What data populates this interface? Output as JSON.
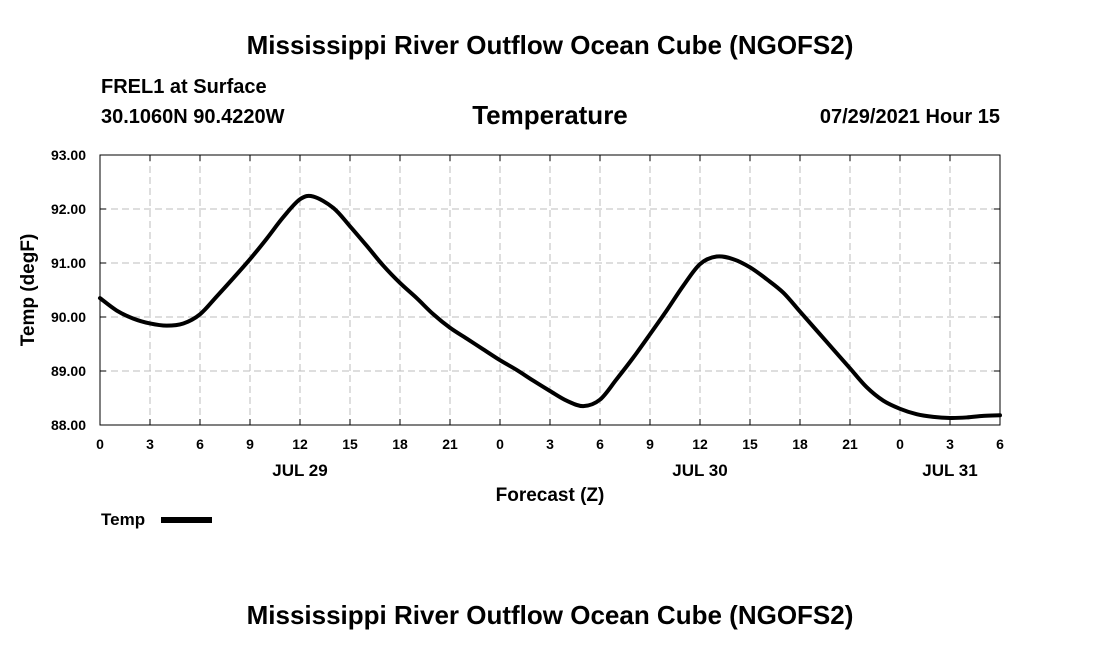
{
  "header": {
    "title": "Mississippi River Outflow Ocean Cube (NGOFS2)",
    "station": "FREL1 at Surface",
    "coordinates": "30.1060N  90.4220W",
    "parameter": "Temperature",
    "datetime": "07/29/2021 Hour 15"
  },
  "footer": {
    "title": "Mississippi River Outflow Ocean Cube (NGOFS2)"
  },
  "legend": {
    "label": "Temp"
  },
  "chart_data": {
    "type": "line",
    "title": "Temperature",
    "xlabel": "Forecast (Z)",
    "ylabel": "Temp (degF)",
    "xlim": [
      0,
      54
    ],
    "ylim": [
      88.0,
      93.0
    ],
    "grid": true,
    "x_ticks": [
      0,
      3,
      6,
      9,
      12,
      15,
      18,
      21,
      24,
      27,
      30,
      33,
      36,
      39,
      42,
      45,
      48,
      51,
      54
    ],
    "x_tick_labels": [
      "0",
      "3",
      "6",
      "9",
      "12",
      "15",
      "18",
      "21",
      "0",
      "3",
      "6",
      "9",
      "12",
      "15",
      "18",
      "21",
      "0",
      "3",
      "6"
    ],
    "y_ticks": [
      88.0,
      89.0,
      90.0,
      91.0,
      92.0,
      93.0
    ],
    "y_tick_labels": [
      "88.00",
      "89.00",
      "90.00",
      "91.00",
      "92.00",
      "93.00"
    ],
    "date_labels": [
      {
        "x": 12,
        "label": "JUL 29"
      },
      {
        "x": 36,
        "label": "JUL 30"
      },
      {
        "x": 51,
        "label": "JUL 31"
      }
    ],
    "series": [
      {
        "name": "Temp",
        "color": "#000000",
        "x": [
          0,
          1,
          2,
          3,
          4,
          5,
          6,
          7,
          8,
          9,
          10,
          11,
          12,
          12.8,
          14,
          15,
          16,
          17,
          18,
          19,
          20,
          21,
          22,
          23,
          24,
          25,
          26,
          27,
          28,
          29,
          30,
          31,
          32,
          33,
          34,
          35,
          36,
          37,
          38,
          39,
          40,
          41,
          42,
          43,
          44,
          45,
          46,
          47,
          48,
          49,
          50,
          51,
          52,
          53,
          54
        ],
        "values": [
          90.35,
          90.12,
          89.97,
          89.88,
          89.84,
          89.88,
          90.05,
          90.38,
          90.72,
          91.07,
          91.45,
          91.85,
          92.18,
          92.23,
          92.02,
          91.68,
          91.32,
          90.95,
          90.63,
          90.35,
          90.05,
          89.8,
          89.6,
          89.4,
          89.2,
          89.02,
          88.82,
          88.63,
          88.45,
          88.35,
          88.47,
          88.85,
          89.25,
          89.68,
          90.12,
          90.58,
          90.98,
          91.12,
          91.07,
          90.92,
          90.7,
          90.45,
          90.1,
          89.75,
          89.4,
          89.05,
          88.7,
          88.45,
          88.3,
          88.2,
          88.15,
          88.13,
          88.14,
          88.17,
          88.18
        ]
      }
    ]
  }
}
